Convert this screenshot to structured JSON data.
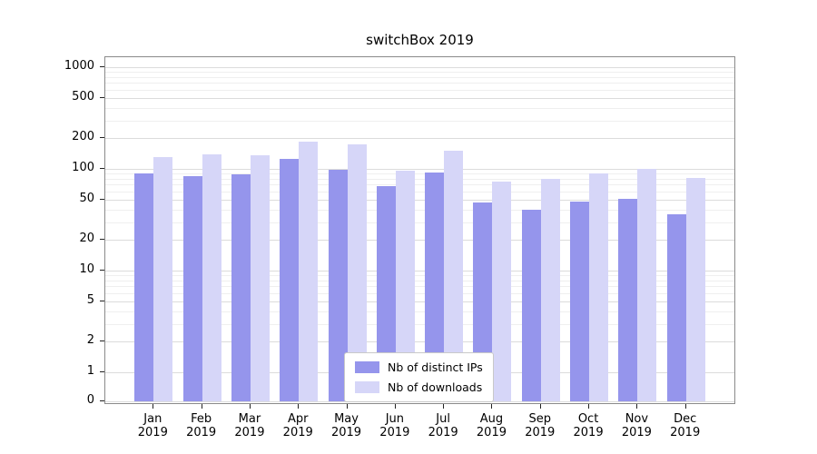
{
  "chart_data": {
    "type": "bar",
    "title": "switchBox 2019",
    "categories": [
      "Jan",
      "Feb",
      "Mar",
      "Apr",
      "May",
      "Jun",
      "Jul",
      "Aug",
      "Sep",
      "Oct",
      "Nov",
      "Dec"
    ],
    "year": "2019",
    "series": [
      {
        "name": "Nb of distinct IPs",
        "color": "#9595ec",
        "values": [
          90,
          85,
          88,
          125,
          97,
          68,
          92,
          47,
          40,
          48,
          51,
          36
        ]
      },
      {
        "name": "Nb of downloads",
        "color": "#d6d6f8",
        "values": [
          130,
          138,
          136,
          185,
          175,
          95,
          152,
          75,
          80,
          90,
          100,
          82
        ]
      }
    ],
    "yscale": "symlog",
    "yticks": [
      0,
      1,
      2,
      5,
      10,
      20,
      50,
      100,
      200,
      500,
      1000
    ],
    "ylim": [
      0,
      1500
    ],
    "grid": true,
    "legend_position": "lower center",
    "colors": {
      "major_grid": "#dcdcdc",
      "minor_grid": "#efefef",
      "axis": "#8a8a8a",
      "tick": "#222222"
    }
  }
}
